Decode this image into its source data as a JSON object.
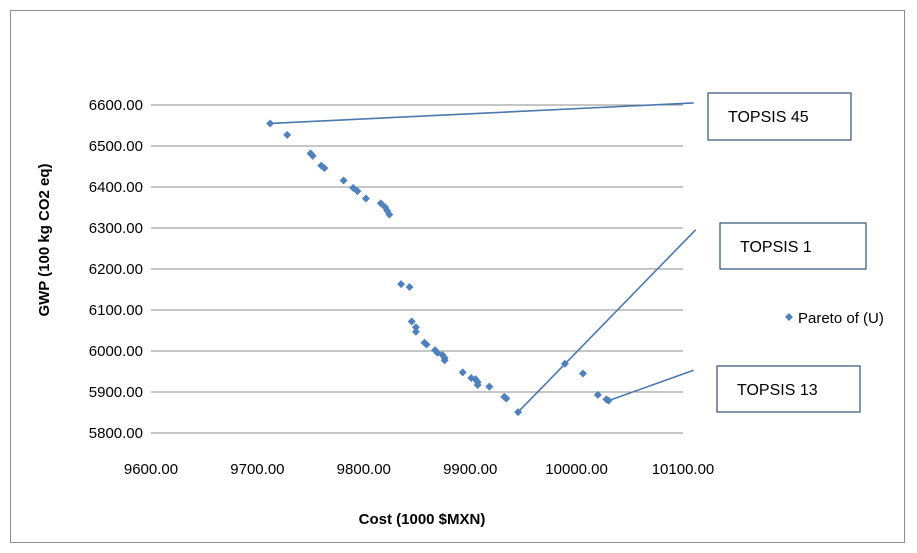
{
  "chart_data": {
    "type": "scatter",
    "title": "",
    "xlabel": "Cost (1000 $MXN)",
    "ylabel": "GWP (100 kg CO2 eq)",
    "xlim": [
      9600,
      10100
    ],
    "ylim": [
      5800,
      6600
    ],
    "x_ticks": [
      "9600.00",
      "9700.00",
      "9800.00",
      "9900.00",
      "10000.00",
      "10100.00"
    ],
    "y_ticks": [
      "5800.00",
      "5900.00",
      "6000.00",
      "6100.00",
      "6200.00",
      "6300.00",
      "6400.00",
      "6500.00",
      "6600.00"
    ],
    "grid": "horizontal",
    "legend_position": "right",
    "series": [
      {
        "name": "Pareto of (U)",
        "color": "#4f81bd",
        "marker": "diamond",
        "points": [
          [
            9712,
            6555
          ],
          [
            9728,
            6527
          ],
          [
            9750,
            6482
          ],
          [
            9752,
            6476
          ],
          [
            9760,
            6452
          ],
          [
            9763,
            6446
          ],
          [
            9781,
            6416
          ],
          [
            9790,
            6398
          ],
          [
            9794,
            6390
          ],
          [
            9802,
            6372
          ],
          [
            9816,
            6360
          ],
          [
            9820,
            6351
          ],
          [
            9822,
            6342
          ],
          [
            9824,
            6333
          ],
          [
            9835,
            6163
          ],
          [
            9843,
            6156
          ],
          [
            9845,
            6072
          ],
          [
            9849,
            6058
          ],
          [
            9849,
            6047
          ],
          [
            9857,
            6020
          ],
          [
            9859,
            6016
          ],
          [
            9867,
            6002
          ],
          [
            9869,
            5996
          ],
          [
            9874,
            5990
          ],
          [
            9876,
            5983
          ],
          [
            9876,
            5977
          ],
          [
            9893,
            5948
          ],
          [
            9901,
            5934
          ],
          [
            9905,
            5931
          ],
          [
            9907,
            5924
          ],
          [
            9907,
            5917
          ],
          [
            9918,
            5913
          ],
          [
            9932,
            5888
          ],
          [
            9934,
            5884
          ],
          [
            9945,
            5851
          ],
          [
            9989,
            5969
          ],
          [
            10006,
            5945
          ],
          [
            10020,
            5893
          ],
          [
            10028,
            5882
          ],
          [
            10030,
            5879
          ]
        ]
      }
    ],
    "annotations": [
      {
        "label": "TOPSIS 45",
        "point": [
          9712,
          6555
        ],
        "leader_end": [
          10110,
          6605
        ]
      },
      {
        "label": "TOPSIS 1",
        "point": [
          9945,
          5851
        ],
        "leader_end": [
          10112,
          6296
        ]
      },
      {
        "label": "TOPSIS 13",
        "point": [
          10030,
          5879
        ],
        "leader_end": [
          10110,
          5953
        ]
      }
    ]
  }
}
